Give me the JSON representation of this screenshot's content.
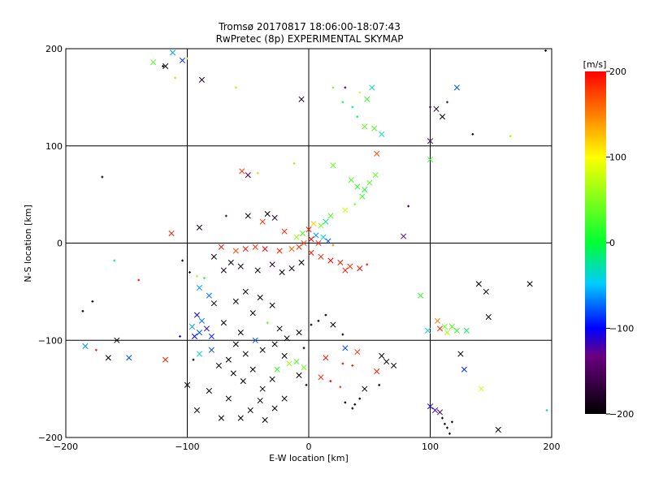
{
  "chart_data": {
    "type": "scatter",
    "title": "Tromsø 20170817 18:06:00-18:07:43",
    "subtitle": "RwPretec (8p) EXPERIMENTAL SKYMAP",
    "xlabel": "E-W location [km]",
    "ylabel": "N-S location [km]",
    "xlim": [
      -200,
      200
    ],
    "ylim": [
      -200,
      200
    ],
    "x_ticks": [
      -200,
      -100,
      0,
      100,
      200
    ],
    "y_ticks": [
      -200,
      -100,
      0,
      100,
      200
    ],
    "grid": true,
    "colorbar": {
      "label": "[m/s]",
      "min": -200,
      "max": 200,
      "ticks": [
        200,
        100,
        0,
        -100,
        -200
      ],
      "colors": [
        "#000000",
        "#6a0080",
        "#0000ff",
        "#00ccff",
        "#00ff33",
        "#ffff00",
        "#ff0000"
      ]
    },
    "points": [
      {
        "x": -112,
        "y": 196,
        "v": -60,
        "m": "x"
      },
      {
        "x": -104,
        "y": 188,
        "v": -90,
        "m": "x"
      },
      {
        "x": -118,
        "y": 182,
        "v": -200,
        "m": "x"
      },
      {
        "x": -128,
        "y": 186,
        "v": 30,
        "m": "x"
      },
      {
        "x": -100,
        "y": 190,
        "v": 70,
        "m": "+"
      },
      {
        "x": -110,
        "y": 170,
        "v": 120,
        "m": "+"
      },
      {
        "x": -88,
        "y": 168,
        "v": -180,
        "m": "x"
      },
      {
        "x": -60,
        "y": 160,
        "v": 60,
        "m": "+"
      },
      {
        "x": -6,
        "y": 148,
        "v": -190,
        "m": "x"
      },
      {
        "x": 20,
        "y": 160,
        "v": 40,
        "m": "+"
      },
      {
        "x": 28,
        "y": 145,
        "v": 10,
        "m": "+"
      },
      {
        "x": 36,
        "y": 140,
        "v": -20,
        "m": "+"
      },
      {
        "x": 42,
        "y": 155,
        "v": 80,
        "m": "+"
      },
      {
        "x": 48,
        "y": 148,
        "v": 20,
        "m": "x"
      },
      {
        "x": 52,
        "y": 160,
        "v": -30,
        "m": "x"
      },
      {
        "x": 40,
        "y": 130,
        "v": -10,
        "m": "+"
      },
      {
        "x": 46,
        "y": 120,
        "v": 40,
        "m": "x"
      },
      {
        "x": 54,
        "y": 118,
        "v": 30,
        "m": "x"
      },
      {
        "x": 60,
        "y": 112,
        "v": -30,
        "m": "x"
      },
      {
        "x": 56,
        "y": 92,
        "v": 170,
        "m": "x"
      },
      {
        "x": 30,
        "y": 160,
        "v": -150,
        "m": "+"
      },
      {
        "x": 100,
        "y": 140,
        "v": -160,
        "m": "+"
      },
      {
        "x": 105,
        "y": 138,
        "v": -180,
        "m": "x"
      },
      {
        "x": 110,
        "y": 130,
        "v": -200,
        "m": "x"
      },
      {
        "x": 114,
        "y": 145,
        "v": -140,
        "m": "+"
      },
      {
        "x": 122,
        "y": 160,
        "v": -80,
        "m": "x"
      },
      {
        "x": 100,
        "y": 105,
        "v": -150,
        "m": "x"
      },
      {
        "x": 135,
        "y": 112,
        "v": -190,
        "m": "+"
      },
      {
        "x": 166,
        "y": 110,
        "v": 60,
        "m": "+"
      },
      {
        "x": 195,
        "y": 198,
        "v": -200,
        "m": "+"
      },
      {
        "x": -170,
        "y": 68,
        "v": -200,
        "m": "+"
      },
      {
        "x": -55,
        "y": 74,
        "v": 180,
        "m": "x"
      },
      {
        "x": -50,
        "y": 70,
        "v": -150,
        "m": "x"
      },
      {
        "x": -42,
        "y": 72,
        "v": 120,
        "m": "+"
      },
      {
        "x": -12,
        "y": 82,
        "v": 50,
        "m": "+"
      },
      {
        "x": 20,
        "y": 80,
        "v": 40,
        "m": "x"
      },
      {
        "x": 35,
        "y": 65,
        "v": 30,
        "m": "x"
      },
      {
        "x": 40,
        "y": 58,
        "v": 20,
        "m": "x"
      },
      {
        "x": 46,
        "y": 55,
        "v": 10,
        "m": "x"
      },
      {
        "x": 50,
        "y": 62,
        "v": 30,
        "m": "x"
      },
      {
        "x": 44,
        "y": 48,
        "v": 20,
        "m": "x"
      },
      {
        "x": 55,
        "y": 70,
        "v": 40,
        "m": "x"
      },
      {
        "x": 30,
        "y": 34,
        "v": 80,
        "m": "x"
      },
      {
        "x": 38,
        "y": 40,
        "v": 50,
        "m": "+"
      },
      {
        "x": 82,
        "y": 38,
        "v": -160,
        "m": "+"
      },
      {
        "x": 100,
        "y": 86,
        "v": 20,
        "m": "x"
      },
      {
        "x": 78,
        "y": 7,
        "v": -130,
        "m": "x"
      },
      {
        "x": -113,
        "y": 10,
        "v": 190,
        "m": "x"
      },
      {
        "x": -90,
        "y": 16,
        "v": -190,
        "m": "x"
      },
      {
        "x": -68,
        "y": 28,
        "v": -150,
        "m": "+"
      },
      {
        "x": -50,
        "y": 28,
        "v": -200,
        "m": "x"
      },
      {
        "x": -38,
        "y": 22,
        "v": 180,
        "m": "x"
      },
      {
        "x": -34,
        "y": 30,
        "v": -200,
        "m": "x"
      },
      {
        "x": -28,
        "y": 26,
        "v": -180,
        "m": "x"
      },
      {
        "x": -20,
        "y": 12,
        "v": 190,
        "m": "x"
      },
      {
        "x": -10,
        "y": 6,
        "v": 60,
        "m": "x"
      },
      {
        "x": -5,
        "y": 10,
        "v": 30,
        "m": "x"
      },
      {
        "x": 0,
        "y": 14,
        "v": 190,
        "m": "x"
      },
      {
        "x": 4,
        "y": 20,
        "v": 120,
        "m": "x"
      },
      {
        "x": 10,
        "y": 18,
        "v": 50,
        "m": "x"
      },
      {
        "x": 14,
        "y": 22,
        "v": -20,
        "m": "x"
      },
      {
        "x": 18,
        "y": 28,
        "v": 30,
        "m": "x"
      },
      {
        "x": 6,
        "y": 8,
        "v": -60,
        "m": "x"
      },
      {
        "x": 12,
        "y": 6,
        "v": -40,
        "m": "x"
      },
      {
        "x": 2,
        "y": 4,
        "v": 200,
        "m": "x"
      },
      {
        "x": -4,
        "y": 0,
        "v": 180,
        "m": "x"
      },
      {
        "x": 8,
        "y": 0,
        "v": 190,
        "m": "x"
      },
      {
        "x": 16,
        "y": 2,
        "v": -80,
        "m": "x"
      },
      {
        "x": 20,
        "y": -2,
        "v": 150,
        "m": "+"
      },
      {
        "x": -8,
        "y": -4,
        "v": 180,
        "m": "x"
      },
      {
        "x": -14,
        "y": -6,
        "v": 160,
        "m": "x"
      },
      {
        "x": -24,
        "y": -8,
        "v": 190,
        "m": "x"
      },
      {
        "x": -36,
        "y": -6,
        "v": 200,
        "m": "x"
      },
      {
        "x": -44,
        "y": -4,
        "v": 180,
        "m": "x"
      },
      {
        "x": -52,
        "y": -6,
        "v": 190,
        "m": "x"
      },
      {
        "x": -60,
        "y": -8,
        "v": 170,
        "m": "x"
      },
      {
        "x": -72,
        "y": -4,
        "v": 190,
        "m": "x"
      },
      {
        "x": -78,
        "y": -14,
        "v": -200,
        "m": "x"
      },
      {
        "x": 2,
        "y": -10,
        "v": 190,
        "m": "x"
      },
      {
        "x": 10,
        "y": -14,
        "v": 180,
        "m": "x"
      },
      {
        "x": 18,
        "y": -18,
        "v": 200,
        "m": "x"
      },
      {
        "x": 26,
        "y": -20,
        "v": 190,
        "m": "x"
      },
      {
        "x": 34,
        "y": -24,
        "v": 180,
        "m": "x"
      },
      {
        "x": 42,
        "y": -26,
        "v": 200,
        "m": "x"
      },
      {
        "x": 48,
        "y": -22,
        "v": 190,
        "m": "+"
      },
      {
        "x": 30,
        "y": -28,
        "v": 190,
        "m": "x"
      },
      {
        "x": -6,
        "y": -20,
        "v": -200,
        "m": "x"
      },
      {
        "x": -14,
        "y": -26,
        "v": -190,
        "m": "x"
      },
      {
        "x": -22,
        "y": -30,
        "v": -200,
        "m": "x"
      },
      {
        "x": -30,
        "y": -22,
        "v": -180,
        "m": "x"
      },
      {
        "x": -42,
        "y": -28,
        "v": -200,
        "m": "x"
      },
      {
        "x": -56,
        "y": -24,
        "v": -190,
        "m": "x"
      },
      {
        "x": -64,
        "y": -20,
        "v": -200,
        "m": "x"
      },
      {
        "x": -70,
        "y": -28,
        "v": -190,
        "m": "x"
      },
      {
        "x": -86,
        "y": -36,
        "v": 20,
        "m": "+"
      },
      {
        "x": -90,
        "y": -46,
        "v": -60,
        "m": "x"
      },
      {
        "x": -82,
        "y": -54,
        "v": -70,
        "m": "x"
      },
      {
        "x": -78,
        "y": -62,
        "v": -200,
        "m": "x"
      },
      {
        "x": -92,
        "y": -74,
        "v": -100,
        "m": "x"
      },
      {
        "x": -88,
        "y": -80,
        "v": -70,
        "m": "x"
      },
      {
        "x": -96,
        "y": -86,
        "v": -60,
        "m": "x"
      },
      {
        "x": -84,
        "y": -88,
        "v": -110,
        "m": "x"
      },
      {
        "x": -90,
        "y": -92,
        "v": -80,
        "m": "x"
      },
      {
        "x": -94,
        "y": -96,
        "v": -100,
        "m": "x"
      },
      {
        "x": -80,
        "y": -96,
        "v": -90,
        "m": "x"
      },
      {
        "x": -70,
        "y": -82,
        "v": -200,
        "m": "x"
      },
      {
        "x": -60,
        "y": -60,
        "v": -200,
        "m": "x"
      },
      {
        "x": -52,
        "y": -50,
        "v": -200,
        "m": "x"
      },
      {
        "x": -46,
        "y": -72,
        "v": -200,
        "m": "x"
      },
      {
        "x": -40,
        "y": -56,
        "v": -200,
        "m": "x"
      },
      {
        "x": -30,
        "y": -64,
        "v": -200,
        "m": "x"
      },
      {
        "x": -34,
        "y": -82,
        "v": 30,
        "m": "+"
      },
      {
        "x": -24,
        "y": -88,
        "v": -200,
        "m": "x"
      },
      {
        "x": -56,
        "y": -92,
        "v": -200,
        "m": "x"
      },
      {
        "x": -60,
        "y": -104,
        "v": -200,
        "m": "x"
      },
      {
        "x": -52,
        "y": -114,
        "v": -200,
        "m": "x"
      },
      {
        "x": -44,
        "y": -100,
        "v": -80,
        "m": "x"
      },
      {
        "x": -38,
        "y": -110,
        "v": -200,
        "m": "x"
      },
      {
        "x": -28,
        "y": -104,
        "v": -200,
        "m": "x"
      },
      {
        "x": -18,
        "y": -98,
        "v": -200,
        "m": "x"
      },
      {
        "x": -8,
        "y": -92,
        "v": -200,
        "m": "x"
      },
      {
        "x": -4,
        "y": -108,
        "v": -200,
        "m": "+"
      },
      {
        "x": 2,
        "y": -84,
        "v": -200,
        "m": "+"
      },
      {
        "x": 8,
        "y": -80,
        "v": -200,
        "m": "+"
      },
      {
        "x": 14,
        "y": -74,
        "v": -200,
        "m": "+"
      },
      {
        "x": 20,
        "y": -84,
        "v": -200,
        "m": "x"
      },
      {
        "x": 28,
        "y": -94,
        "v": -200,
        "m": "+"
      },
      {
        "x": -66,
        "y": -120,
        "v": -200,
        "m": "x"
      },
      {
        "x": -74,
        "y": -126,
        "v": -200,
        "m": "x"
      },
      {
        "x": -62,
        "y": -134,
        "v": -200,
        "m": "x"
      },
      {
        "x": -54,
        "y": -142,
        "v": -200,
        "m": "x"
      },
      {
        "x": -46,
        "y": -130,
        "v": -200,
        "m": "x"
      },
      {
        "x": -38,
        "y": -150,
        "v": -200,
        "m": "x"
      },
      {
        "x": -30,
        "y": -140,
        "v": -200,
        "m": "x"
      },
      {
        "x": -40,
        "y": -162,
        "v": -200,
        "m": "x"
      },
      {
        "x": -48,
        "y": -172,
        "v": -200,
        "m": "x"
      },
      {
        "x": -56,
        "y": -180,
        "v": -200,
        "m": "x"
      },
      {
        "x": -66,
        "y": -160,
        "v": -200,
        "m": "x"
      },
      {
        "x": -82,
        "y": -152,
        "v": -200,
        "m": "x"
      },
      {
        "x": -92,
        "y": -172,
        "v": -200,
        "m": "x"
      },
      {
        "x": -100,
        "y": -146,
        "v": -200,
        "m": "x"
      },
      {
        "x": -72,
        "y": -180,
        "v": -200,
        "m": "x"
      },
      {
        "x": -36,
        "y": -182,
        "v": -200,
        "m": "x"
      },
      {
        "x": -28,
        "y": -170,
        "v": -200,
        "m": "x"
      },
      {
        "x": -20,
        "y": -160,
        "v": -200,
        "m": "x"
      },
      {
        "x": -16,
        "y": -124,
        "v": 60,
        "m": "x"
      },
      {
        "x": -20,
        "y": -116,
        "v": -200,
        "m": "x"
      },
      {
        "x": -10,
        "y": -122,
        "v": 30,
        "m": "x"
      },
      {
        "x": -4,
        "y": -128,
        "v": 40,
        "m": "x"
      },
      {
        "x": -26,
        "y": -130,
        "v": 20,
        "m": "x"
      },
      {
        "x": -8,
        "y": -136,
        "v": -200,
        "m": "x"
      },
      {
        "x": -2,
        "y": -146,
        "v": -200,
        "m": "+"
      },
      {
        "x": 10,
        "y": -138,
        "v": 190,
        "m": "x"
      },
      {
        "x": 18,
        "y": -142,
        "v": 200,
        "m": "+"
      },
      {
        "x": 26,
        "y": -148,
        "v": 180,
        "m": "+"
      },
      {
        "x": 14,
        "y": -118,
        "v": 190,
        "m": "x"
      },
      {
        "x": 28,
        "y": -124,
        "v": 200,
        "m": "+"
      },
      {
        "x": 30,
        "y": -108,
        "v": -80,
        "m": "x"
      },
      {
        "x": 36,
        "y": -126,
        "v": 190,
        "m": "+"
      },
      {
        "x": 40,
        "y": -112,
        "v": 180,
        "m": "x"
      },
      {
        "x": 56,
        "y": -132,
        "v": 190,
        "m": "x"
      },
      {
        "x": 58,
        "y": -146,
        "v": -200,
        "m": "+"
      },
      {
        "x": 64,
        "y": -122,
        "v": -200,
        "m": "x"
      },
      {
        "x": 70,
        "y": -126,
        "v": -200,
        "m": "x"
      },
      {
        "x": 60,
        "y": -116,
        "v": -200,
        "m": "x"
      },
      {
        "x": 36,
        "y": -170,
        "v": -200,
        "m": "+"
      },
      {
        "x": 42,
        "y": -160,
        "v": -200,
        "m": "+"
      },
      {
        "x": 46,
        "y": -150,
        "v": -200,
        "m": "x"
      },
      {
        "x": 30,
        "y": -164,
        "v": -200,
        "m": "+"
      },
      {
        "x": 38,
        "y": -166,
        "v": -200,
        "m": "+"
      },
      {
        "x": 100,
        "y": -168,
        "v": -110,
        "m": "x"
      },
      {
        "x": 104,
        "y": -172,
        "v": -120,
        "m": "x"
      },
      {
        "x": 108,
        "y": -174,
        "v": -150,
        "m": "x"
      },
      {
        "x": 110,
        "y": -180,
        "v": -200,
        "m": "+"
      },
      {
        "x": 112,
        "y": -186,
        "v": -200,
        "m": "+"
      },
      {
        "x": 114,
        "y": -190,
        "v": -200,
        "m": "+"
      },
      {
        "x": 116,
        "y": -196,
        "v": -200,
        "m": "+"
      },
      {
        "x": 118,
        "y": -184,
        "v": -200,
        "m": "+"
      },
      {
        "x": 106,
        "y": -80,
        "v": 150,
        "m": "x"
      },
      {
        "x": 108,
        "y": -88,
        "v": 190,
        "m": "x"
      },
      {
        "x": 112,
        "y": -86,
        "v": 40,
        "m": "x"
      },
      {
        "x": 118,
        "y": -86,
        "v": 30,
        "m": "x"
      },
      {
        "x": 122,
        "y": -90,
        "v": 20,
        "m": "x"
      },
      {
        "x": 130,
        "y": -90,
        "v": -10,
        "m": "x"
      },
      {
        "x": 114,
        "y": -92,
        "v": 60,
        "m": "x"
      },
      {
        "x": 98,
        "y": -90,
        "v": -40,
        "m": "x"
      },
      {
        "x": 92,
        "y": -54,
        "v": 20,
        "m": "x"
      },
      {
        "x": 125,
        "y": -114,
        "v": -200,
        "m": "x"
      },
      {
        "x": 128,
        "y": -130,
        "v": -90,
        "m": "x"
      },
      {
        "x": 140,
        "y": -42,
        "v": -200,
        "m": "x"
      },
      {
        "x": 146,
        "y": -50,
        "v": -200,
        "m": "x"
      },
      {
        "x": 148,
        "y": -76,
        "v": -200,
        "m": "x"
      },
      {
        "x": 142,
        "y": -150,
        "v": 80,
        "m": "x"
      },
      {
        "x": 182,
        "y": -42,
        "v": -200,
        "m": "x"
      },
      {
        "x": 156,
        "y": -192,
        "v": -200,
        "m": "x"
      },
      {
        "x": 196,
        "y": -172,
        "v": -30,
        "m": "+"
      },
      {
        "x": -158,
        "y": -100,
        "v": -200,
        "m": "x"
      },
      {
        "x": -148,
        "y": -118,
        "v": -80,
        "m": "x"
      },
      {
        "x": -165,
        "y": -118,
        "v": -200,
        "m": "x"
      },
      {
        "x": -175,
        "y": -110,
        "v": 190,
        "m": "+"
      },
      {
        "x": -184,
        "y": -106,
        "v": -60,
        "m": "x"
      },
      {
        "x": -186,
        "y": -70,
        "v": -200,
        "m": "+"
      },
      {
        "x": -178,
        "y": -60,
        "v": -200,
        "m": "+"
      },
      {
        "x": -160,
        "y": -18,
        "v": -20,
        "m": "+"
      },
      {
        "x": -140,
        "y": -38,
        "v": 190,
        "m": "+"
      },
      {
        "x": -106,
        "y": -96,
        "v": -100,
        "m": "+"
      },
      {
        "x": -118,
        "y": -120,
        "v": 190,
        "m": "x"
      },
      {
        "x": -98,
        "y": -30,
        "v": -200,
        "m": "+"
      },
      {
        "x": -92,
        "y": -34,
        "v": 60,
        "m": "+"
      },
      {
        "x": -104,
        "y": -18,
        "v": -200,
        "m": "+"
      },
      {
        "x": -120,
        "y": 182,
        "v": -200,
        "m": "+"
      },
      {
        "x": -80,
        "y": -110,
        "v": -80,
        "m": "x"
      },
      {
        "x": -90,
        "y": -114,
        "v": -40,
        "m": "x"
      },
      {
        "x": -95,
        "y": -120,
        "v": -200,
        "m": "+"
      }
    ]
  }
}
